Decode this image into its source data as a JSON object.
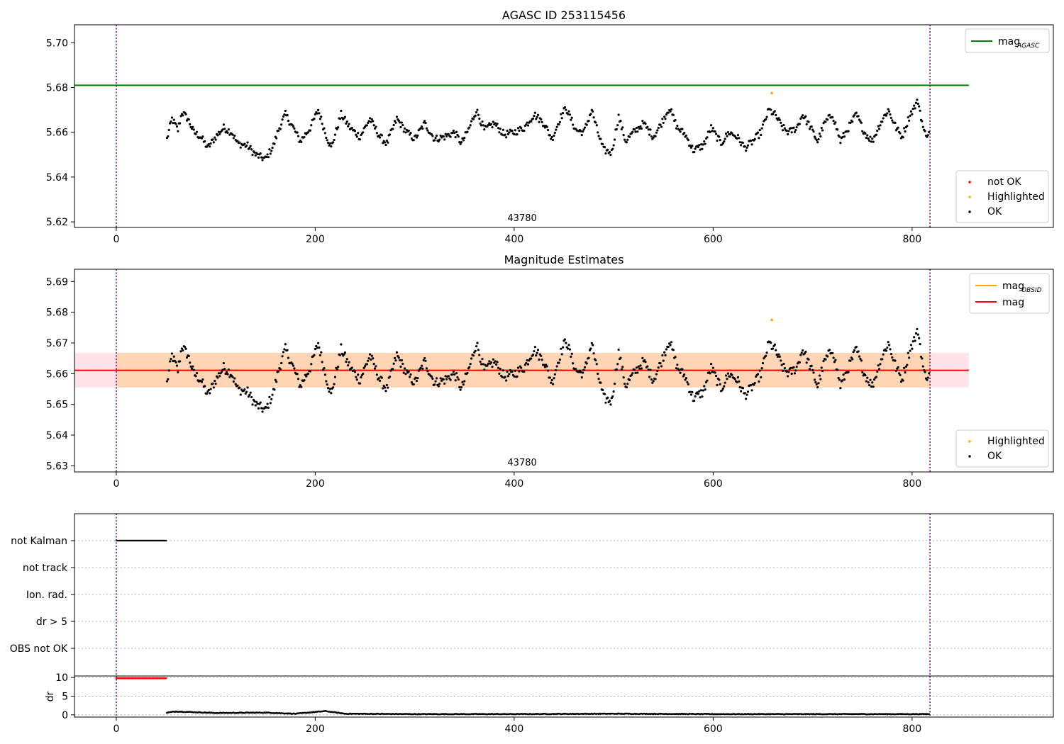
{
  "chart_data": [
    {
      "type": "scatter",
      "title": "AGASC ID 253115456",
      "xlim": [
        -42,
        942
      ],
      "ylim": [
        5.6175,
        5.708
      ],
      "xticks": [
        0,
        200,
        400,
        600,
        800
      ],
      "yticks": [
        5.62,
        5.64,
        5.66,
        5.68,
        5.7
      ],
      "ytick_decimals": 2,
      "obsid_label": "43780",
      "obsid_label_x": 408,
      "vlines": [
        0,
        818
      ],
      "hlines": [
        {
          "name": "mag_AGASC",
          "y": 5.681,
          "x": [
            -42,
            857
          ],
          "color": "#008000"
        }
      ],
      "series": [
        {
          "name": "not OK",
          "color": "#ff0000",
          "x": [],
          "y": []
        },
        {
          "name": "Highlighted",
          "color": "#ffa500",
          "x": [
            659
          ],
          "y": [
            5.6775
          ]
        },
        {
          "name": "OK",
          "color": "#000000",
          "x_range": [
            51,
            817
          ],
          "y_segments": [
            [
              51,
              5.657
            ],
            [
              56,
              5.666
            ],
            [
              62,
              5.661
            ],
            [
              66,
              5.669
            ],
            [
              72,
              5.666
            ],
            [
              78,
              5.66
            ],
            [
              85,
              5.658
            ],
            [
              92,
              5.653
            ],
            [
              100,
              5.658
            ],
            [
              108,
              5.662
            ],
            [
              116,
              5.66
            ],
            [
              122,
              5.655
            ],
            [
              132,
              5.654
            ],
            [
              140,
              5.65
            ],
            [
              150,
              5.648
            ],
            [
              158,
              5.654
            ],
            [
              163,
              5.661
            ],
            [
              170,
              5.668
            ],
            [
              178,
              5.662
            ],
            [
              185,
              5.656
            ],
            [
              195,
              5.662
            ],
            [
              203,
              5.67
            ],
            [
              210,
              5.66
            ],
            [
              216,
              5.653
            ],
            [
              226,
              5.668
            ],
            [
              235,
              5.662
            ],
            [
              245,
              5.658
            ],
            [
              255,
              5.666
            ],
            [
              265,
              5.658
            ],
            [
              272,
              5.655
            ],
            [
              282,
              5.666
            ],
            [
              292,
              5.66
            ],
            [
              300,
              5.657
            ],
            [
              310,
              5.664
            ],
            [
              320,
              5.657
            ],
            [
              330,
              5.658
            ],
            [
              340,
              5.66
            ],
            [
              347,
              5.655
            ],
            [
              355,
              5.662
            ],
            [
              362,
              5.67
            ],
            [
              370,
              5.661
            ],
            [
              380,
              5.664
            ],
            [
              390,
              5.659
            ],
            [
              400,
              5.66
            ],
            [
              410,
              5.662
            ],
            [
              420,
              5.668
            ],
            [
              430,
              5.664
            ],
            [
              438,
              5.657
            ],
            [
              446,
              5.666
            ],
            [
              452,
              5.671
            ],
            [
              462,
              5.661
            ],
            [
              470,
              5.66
            ],
            [
              478,
              5.67
            ],
            [
              484,
              5.66
            ],
            [
              490,
              5.652
            ],
            [
              498,
              5.651
            ],
            [
              505,
              5.667
            ],
            [
              512,
              5.656
            ],
            [
              520,
              5.66
            ],
            [
              530,
              5.664
            ],
            [
              540,
              5.658
            ],
            [
              548,
              5.664
            ],
            [
              556,
              5.671
            ],
            [
              564,
              5.662
            ],
            [
              572,
              5.659
            ],
            [
              580,
              5.652
            ],
            [
              590,
              5.654
            ],
            [
              598,
              5.662
            ],
            [
              608,
              5.655
            ],
            [
              616,
              5.66
            ],
            [
              624,
              5.658
            ],
            [
              632,
              5.653
            ],
            [
              640,
              5.656
            ],
            [
              648,
              5.66
            ],
            [
              656,
              5.67
            ],
            [
              662,
              5.668
            ],
            [
              670,
              5.662
            ],
            [
              676,
              5.66
            ],
            [
              684,
              5.662
            ],
            [
              690,
              5.668
            ],
            [
              698,
              5.662
            ],
            [
              705,
              5.656
            ],
            [
              712,
              5.664
            ],
            [
              720,
              5.668
            ],
            [
              728,
              5.656
            ],
            [
              736,
              5.662
            ],
            [
              744,
              5.668
            ],
            [
              752,
              5.66
            ],
            [
              760,
              5.656
            ],
            [
              768,
              5.664
            ],
            [
              776,
              5.67
            ],
            [
              784,
              5.662
            ],
            [
              790,
              5.658
            ],
            [
              798,
              5.668
            ],
            [
              806,
              5.674
            ],
            [
              812,
              5.66
            ],
            [
              817,
              5.659
            ]
          ]
        }
      ],
      "legend_lines": [
        {
          "label_main": "mag",
          "label_sub": "AGASC",
          "color": "#008000"
        }
      ],
      "legend_points": [
        {
          "label": "not OK",
          "color": "#ff0000"
        },
        {
          "label": "Highlighted",
          "color": "#ffa500"
        },
        {
          "label": "OK",
          "color": "#000000"
        }
      ]
    },
    {
      "type": "scatter",
      "title": "Magnitude Estimates",
      "xlim": [
        -42,
        942
      ],
      "ylim": [
        5.628,
        5.694
      ],
      "xticks": [
        0,
        200,
        400,
        600,
        800
      ],
      "yticks": [
        5.63,
        5.64,
        5.65,
        5.66,
        5.67,
        5.68,
        5.69
      ],
      "ytick_decimals": 2,
      "obsid_label": "43780",
      "obsid_label_x": 408,
      "vlines": [
        0,
        818
      ],
      "bands": [
        {
          "y": [
            5.6555,
            5.6668
          ],
          "x": [
            -42,
            857
          ],
          "color": "#ffc0cb",
          "opacity": 0.45
        },
        {
          "y": [
            5.6555,
            5.6668
          ],
          "x": [
            0,
            818
          ],
          "color": "#ffa500",
          "opacity": 0.22
        }
      ],
      "hlines": [
        {
          "name": "mag_OBSID",
          "y": 5.6611,
          "x": [
            0,
            818
          ],
          "color": "#ffa500"
        },
        {
          "name": "mag",
          "y": 5.6611,
          "x": [
            -42,
            857
          ],
          "color": "#ff0000"
        }
      ],
      "series": [
        {
          "name": "Highlighted",
          "color": "#ffa500",
          "x": [
            659
          ],
          "y": [
            5.6775
          ]
        },
        {
          "name": "OK",
          "color": "#000000",
          "same_as_panel": 0
        }
      ],
      "legend_lines": [
        {
          "label_main": "mag",
          "label_sub": "OBSID",
          "color": "#ffa500"
        },
        {
          "label_main": "mag",
          "label_sub": "",
          "color": "#ff0000"
        }
      ],
      "legend_points": [
        {
          "label": "Highlighted",
          "color": "#ffa500"
        },
        {
          "label": "OK",
          "color": "#000000"
        }
      ]
    },
    {
      "type": "scatter",
      "title": "",
      "xlim": [
        -42,
        942
      ],
      "categories": [
        "not Kalman",
        "not track",
        "Ion. rad.",
        "dr > 5",
        "OBS not OK"
      ],
      "vlines": [
        0,
        818
      ],
      "flag_series": [
        {
          "category": "not Kalman",
          "x_range": [
            0,
            50
          ],
          "color": "#000000"
        }
      ]
    },
    {
      "type": "scatter",
      "title": "",
      "ylabel": "dr",
      "xlim": [
        -42,
        942
      ],
      "ylim": [
        -0.6,
        10.4
      ],
      "xticks": [
        0,
        200,
        400,
        600,
        800
      ],
      "yticks": [
        0,
        5,
        10
      ],
      "vlines": [
        0,
        818
      ],
      "series": [
        {
          "name": "dr clipped",
          "color": "#ff0000",
          "x_range": [
            0,
            50
          ],
          "y_const": 9.8
        },
        {
          "name": "dr",
          "color": "#000000",
          "x_range": [
            51,
            817
          ],
          "y_segments": [
            [
              51,
              0.6
            ],
            [
              60,
              0.9
            ],
            [
              100,
              0.5
            ],
            [
              150,
              0.6
            ],
            [
              180,
              0.3
            ],
            [
              210,
              1.0
            ],
            [
              230,
              0.3
            ],
            [
              300,
              0.2
            ],
            [
              400,
              0.2
            ],
            [
              500,
              0.3
            ],
            [
              600,
              0.2
            ],
            [
              700,
              0.2
            ],
            [
              817,
              0.2
            ]
          ]
        }
      ]
    }
  ]
}
